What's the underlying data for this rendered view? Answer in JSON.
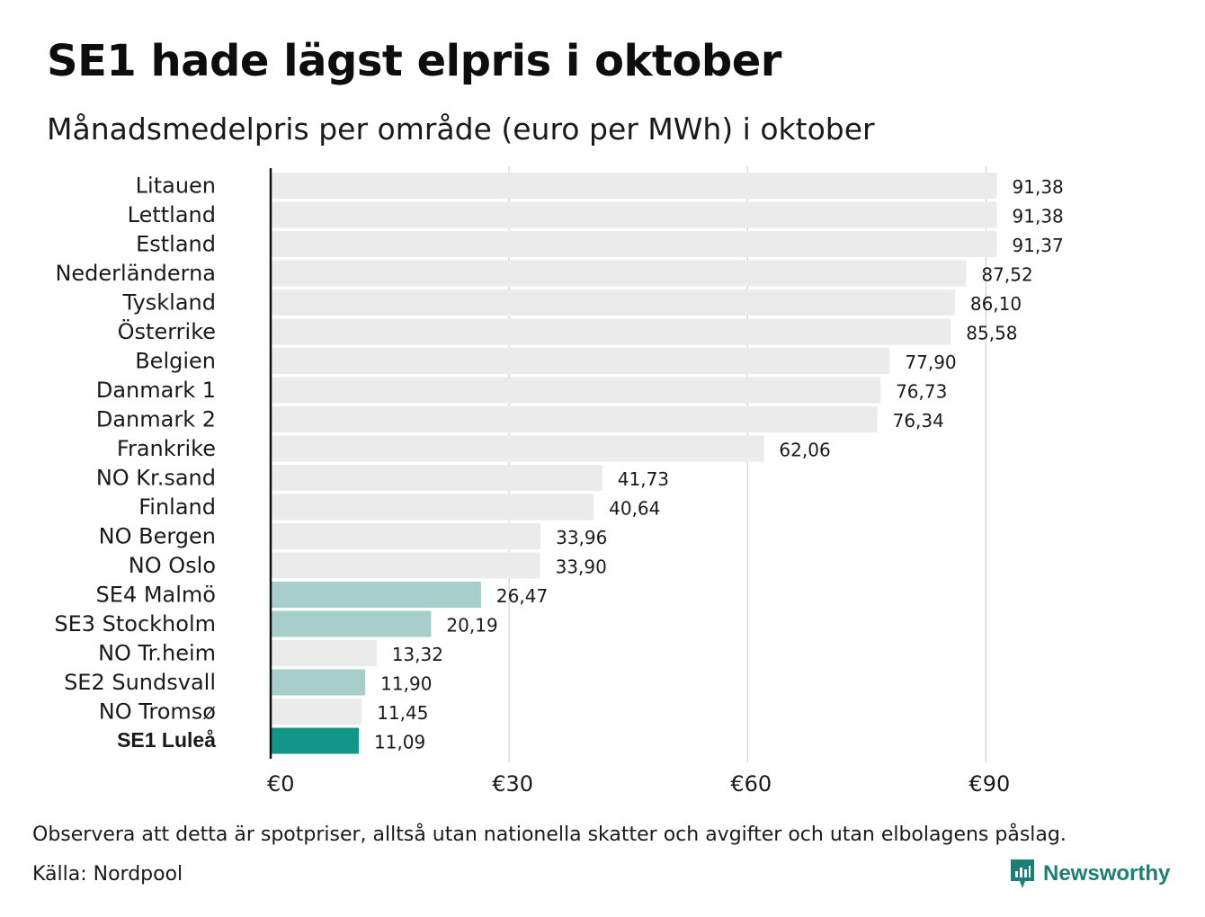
{
  "header": {
    "title": "SE1 hade lägst elpris i oktober",
    "subtitle": "Månadsmedelpris per område (euro per MWh) i oktober"
  },
  "footer": {
    "note": "Observera att detta är spotpriser, alltså utan nationella skatter och avgifter och utan elbolagens påslag.",
    "source": "Källa: Nordpool",
    "logo_text": "Newsworthy"
  },
  "colors": {
    "default_bar": "#ebebeb",
    "swedish_bar": "#a6cfca",
    "highlight_bar": "#13968a",
    "gridline": "#c8c8c8",
    "axis": "#111111",
    "brand": "#1c7f73"
  },
  "chart_data": {
    "type": "bar",
    "orientation": "horizontal",
    "title": "SE1 hade lägst elpris i oktober",
    "subtitle": "Månadsmedelpris per område (euro per MWh) i oktober",
    "xlim": [
      0,
      100
    ],
    "ticks": [
      0,
      30,
      60,
      90
    ],
    "tick_labels": [
      "€0",
      "€30",
      "€60",
      "€90"
    ],
    "grid": true,
    "categories": [
      "Litauen",
      "Lettland",
      "Estland",
      "Nederländerna",
      "Tyskland",
      "Österrike",
      "Belgien",
      "Danmark 1",
      "Danmark 2",
      "Frankrike",
      "NO Kr.sand",
      "Finland",
      "NO Bergen",
      "NO Oslo",
      "SE4 Malmö",
      "SE3 Stockholm",
      "NO Tr.heim",
      "SE2 Sundsvall",
      "NO Tromsø",
      "SE1 Luleå"
    ],
    "values": [
      91.38,
      91.38,
      91.37,
      87.52,
      86.1,
      85.58,
      77.9,
      76.73,
      76.34,
      62.06,
      41.73,
      40.64,
      33.96,
      33.9,
      26.47,
      20.19,
      13.32,
      11.9,
      11.45,
      11.09
    ],
    "value_labels": [
      "91,38",
      "91,38",
      "91,37",
      "87,52",
      "86,10",
      "85,58",
      "77,90",
      "76,73",
      "76,34",
      "62,06",
      "41,73",
      "40,64",
      "33,96",
      "33,90",
      "26,47",
      "20,19",
      "13,32",
      "11,90",
      "11,45",
      "11,09"
    ],
    "bar_style": [
      "default",
      "default",
      "default",
      "default",
      "default",
      "default",
      "default",
      "default",
      "default",
      "default",
      "default",
      "default",
      "default",
      "default",
      "swedish",
      "swedish",
      "default",
      "swedish",
      "default",
      "highlight"
    ]
  }
}
